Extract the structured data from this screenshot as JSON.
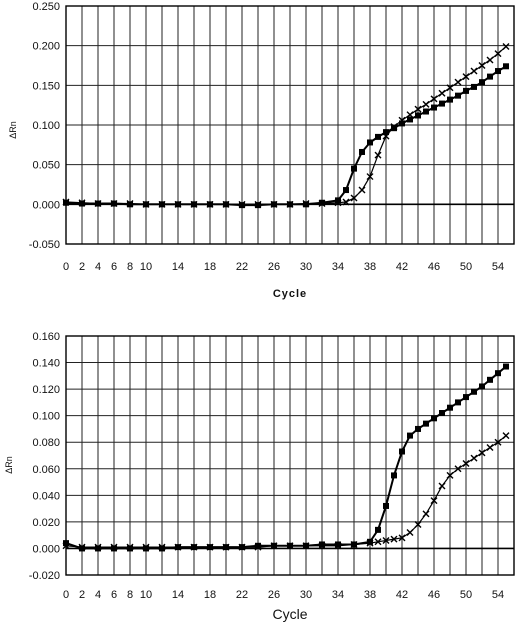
{
  "chart_data": [
    {
      "type": "line",
      "title": "",
      "xlabel": "Cycle",
      "ylabel": "ΔRn",
      "ylim": [
        -0.05,
        0.25
      ],
      "yticks": [
        "0.250",
        "0.200",
        "0.150",
        "0.100",
        "0.050",
        "0.000",
        "-0.050"
      ],
      "xlim": [
        0,
        56
      ],
      "xticks": [
        "0",
        "2",
        "4",
        "6",
        "8",
        "10",
        "14",
        "18",
        "22",
        "26",
        "30",
        "34",
        "38",
        "42",
        "46",
        "50",
        "54"
      ],
      "grid": true,
      "x": [
        0,
        2,
        4,
        6,
        8,
        10,
        12,
        14,
        16,
        18,
        20,
        22,
        24,
        26,
        28,
        30,
        32,
        34,
        35,
        36,
        37,
        38,
        39,
        40,
        41,
        42,
        43,
        44,
        45,
        46,
        47,
        48,
        49,
        50,
        51,
        52,
        53,
        54,
        55
      ],
      "series": [
        {
          "marker": "square",
          "values": [
            0.002,
            0.001,
            0.001,
            0.001,
            0.0,
            0.0,
            0.0,
            0.0,
            0.0,
            0.0,
            0.0,
            -0.001,
            -0.001,
            0.0,
            0.0,
            0.0,
            0.002,
            0.005,
            0.018,
            0.045,
            0.066,
            0.078,
            0.085,
            0.091,
            0.096,
            0.102,
            0.107,
            0.112,
            0.117,
            0.122,
            0.127,
            0.132,
            0.137,
            0.143,
            0.148,
            0.154,
            0.161,
            0.168,
            0.174
          ]
        },
        {
          "marker": "x",
          "values": [
            0.003,
            0.002,
            0.001,
            0.001,
            0.001,
            0.0,
            0.0,
            0.0,
            0.0,
            0.0,
            0.0,
            0.0,
            0.0,
            0.0,
            0.0,
            0.001,
            0.001,
            0.002,
            0.003,
            0.008,
            0.018,
            0.035,
            0.062,
            0.086,
            0.098,
            0.106,
            0.113,
            0.12,
            0.126,
            0.133,
            0.14,
            0.147,
            0.154,
            0.161,
            0.168,
            0.175,
            0.182,
            0.19,
            0.199
          ]
        }
      ]
    },
    {
      "type": "line",
      "title": "",
      "xlabel": "Cycle",
      "ylabel": "ΔRn",
      "ylim": [
        -0.02,
        0.16
      ],
      "yticks": [
        "0.160",
        "0.140",
        "0.120",
        "0.100",
        "0.080",
        "0.060",
        "0.040",
        "0.020",
        "0.000",
        "-0.020"
      ],
      "xlim": [
        0,
        56
      ],
      "xticks": [
        "0",
        "2",
        "4",
        "6",
        "8",
        "10",
        "14",
        "18",
        "22",
        "26",
        "30",
        "34",
        "38",
        "42",
        "46",
        "50",
        "54"
      ],
      "grid": true,
      "x": [
        0,
        2,
        4,
        6,
        8,
        10,
        12,
        14,
        16,
        18,
        20,
        22,
        24,
        26,
        28,
        30,
        32,
        34,
        36,
        38,
        39,
        40,
        41,
        42,
        43,
        44,
        45,
        46,
        47,
        48,
        49,
        50,
        51,
        52,
        53,
        54,
        55
      ],
      "series": [
        {
          "marker": "square",
          "values": [
            0.004,
            0.0,
            0.0,
            0.0,
            0.0,
            0.0,
            0.0,
            0.001,
            0.001,
            0.001,
            0.001,
            0.001,
            0.002,
            0.002,
            0.002,
            0.002,
            0.003,
            0.003,
            0.003,
            0.005,
            0.014,
            0.032,
            0.055,
            0.073,
            0.085,
            0.09,
            0.094,
            0.098,
            0.102,
            0.106,
            0.11,
            0.114,
            0.118,
            0.122,
            0.127,
            0.132,
            0.137
          ]
        },
        {
          "marker": "x",
          "values": [
            0.002,
            0.001,
            0.001,
            0.001,
            0.001,
            0.001,
            0.001,
            0.001,
            0.001,
            0.001,
            0.001,
            0.001,
            0.001,
            0.002,
            0.002,
            0.002,
            0.002,
            0.002,
            0.003,
            0.004,
            0.005,
            0.006,
            0.007,
            0.008,
            0.012,
            0.018,
            0.026,
            0.036,
            0.047,
            0.055,
            0.06,
            0.064,
            0.068,
            0.072,
            0.076,
            0.08,
            0.085
          ]
        }
      ]
    }
  ]
}
